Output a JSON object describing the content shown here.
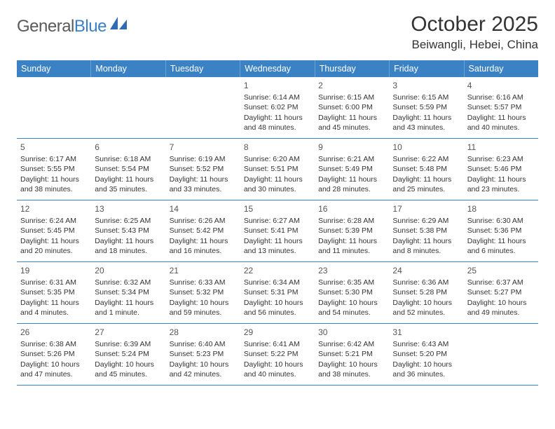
{
  "brand": {
    "part1": "General",
    "part2": "Blue"
  },
  "title": "October 2025",
  "location": "Beiwangli, Hebei, China",
  "colors": {
    "header_bg": "#3b82c4",
    "header_text": "#ffffff",
    "rule": "#3b82c4",
    "body_text": "#333333",
    "brand_gray": "#5a5a5a",
    "brand_blue": "#3b7fc4",
    "page_bg": "#ffffff"
  },
  "typography": {
    "title_fontsize": 30,
    "location_fontsize": 17,
    "weekday_fontsize": 12.5,
    "daynum_fontsize": 12,
    "body_fontsize": 10.5,
    "font_family": "Arial"
  },
  "weekdays": [
    "Sunday",
    "Monday",
    "Tuesday",
    "Wednesday",
    "Thursday",
    "Friday",
    "Saturday"
  ],
  "weeks": [
    [
      {
        "day": "",
        "sunrise": "",
        "sunset": "",
        "daylight1": "",
        "daylight2": ""
      },
      {
        "day": "",
        "sunrise": "",
        "sunset": "",
        "daylight1": "",
        "daylight2": ""
      },
      {
        "day": "",
        "sunrise": "",
        "sunset": "",
        "daylight1": "",
        "daylight2": ""
      },
      {
        "day": "1",
        "sunrise": "Sunrise: 6:14 AM",
        "sunset": "Sunset: 6:02 PM",
        "daylight1": "Daylight: 11 hours",
        "daylight2": "and 48 minutes."
      },
      {
        "day": "2",
        "sunrise": "Sunrise: 6:15 AM",
        "sunset": "Sunset: 6:00 PM",
        "daylight1": "Daylight: 11 hours",
        "daylight2": "and 45 minutes."
      },
      {
        "day": "3",
        "sunrise": "Sunrise: 6:15 AM",
        "sunset": "Sunset: 5:59 PM",
        "daylight1": "Daylight: 11 hours",
        "daylight2": "and 43 minutes."
      },
      {
        "day": "4",
        "sunrise": "Sunrise: 6:16 AM",
        "sunset": "Sunset: 5:57 PM",
        "daylight1": "Daylight: 11 hours",
        "daylight2": "and 40 minutes."
      }
    ],
    [
      {
        "day": "5",
        "sunrise": "Sunrise: 6:17 AM",
        "sunset": "Sunset: 5:55 PM",
        "daylight1": "Daylight: 11 hours",
        "daylight2": "and 38 minutes."
      },
      {
        "day": "6",
        "sunrise": "Sunrise: 6:18 AM",
        "sunset": "Sunset: 5:54 PM",
        "daylight1": "Daylight: 11 hours",
        "daylight2": "and 35 minutes."
      },
      {
        "day": "7",
        "sunrise": "Sunrise: 6:19 AM",
        "sunset": "Sunset: 5:52 PM",
        "daylight1": "Daylight: 11 hours",
        "daylight2": "and 33 minutes."
      },
      {
        "day": "8",
        "sunrise": "Sunrise: 6:20 AM",
        "sunset": "Sunset: 5:51 PM",
        "daylight1": "Daylight: 11 hours",
        "daylight2": "and 30 minutes."
      },
      {
        "day": "9",
        "sunrise": "Sunrise: 6:21 AM",
        "sunset": "Sunset: 5:49 PM",
        "daylight1": "Daylight: 11 hours",
        "daylight2": "and 28 minutes."
      },
      {
        "day": "10",
        "sunrise": "Sunrise: 6:22 AM",
        "sunset": "Sunset: 5:48 PM",
        "daylight1": "Daylight: 11 hours",
        "daylight2": "and 25 minutes."
      },
      {
        "day": "11",
        "sunrise": "Sunrise: 6:23 AM",
        "sunset": "Sunset: 5:46 PM",
        "daylight1": "Daylight: 11 hours",
        "daylight2": "and 23 minutes."
      }
    ],
    [
      {
        "day": "12",
        "sunrise": "Sunrise: 6:24 AM",
        "sunset": "Sunset: 5:45 PM",
        "daylight1": "Daylight: 11 hours",
        "daylight2": "and 20 minutes."
      },
      {
        "day": "13",
        "sunrise": "Sunrise: 6:25 AM",
        "sunset": "Sunset: 5:43 PM",
        "daylight1": "Daylight: 11 hours",
        "daylight2": "and 18 minutes."
      },
      {
        "day": "14",
        "sunrise": "Sunrise: 6:26 AM",
        "sunset": "Sunset: 5:42 PM",
        "daylight1": "Daylight: 11 hours",
        "daylight2": "and 16 minutes."
      },
      {
        "day": "15",
        "sunrise": "Sunrise: 6:27 AM",
        "sunset": "Sunset: 5:41 PM",
        "daylight1": "Daylight: 11 hours",
        "daylight2": "and 13 minutes."
      },
      {
        "day": "16",
        "sunrise": "Sunrise: 6:28 AM",
        "sunset": "Sunset: 5:39 PM",
        "daylight1": "Daylight: 11 hours",
        "daylight2": "and 11 minutes."
      },
      {
        "day": "17",
        "sunrise": "Sunrise: 6:29 AM",
        "sunset": "Sunset: 5:38 PM",
        "daylight1": "Daylight: 11 hours",
        "daylight2": "and 8 minutes."
      },
      {
        "day": "18",
        "sunrise": "Sunrise: 6:30 AM",
        "sunset": "Sunset: 5:36 PM",
        "daylight1": "Daylight: 11 hours",
        "daylight2": "and 6 minutes."
      }
    ],
    [
      {
        "day": "19",
        "sunrise": "Sunrise: 6:31 AM",
        "sunset": "Sunset: 5:35 PM",
        "daylight1": "Daylight: 11 hours",
        "daylight2": "and 4 minutes."
      },
      {
        "day": "20",
        "sunrise": "Sunrise: 6:32 AM",
        "sunset": "Sunset: 5:34 PM",
        "daylight1": "Daylight: 11 hours",
        "daylight2": "and 1 minute."
      },
      {
        "day": "21",
        "sunrise": "Sunrise: 6:33 AM",
        "sunset": "Sunset: 5:32 PM",
        "daylight1": "Daylight: 10 hours",
        "daylight2": "and 59 minutes."
      },
      {
        "day": "22",
        "sunrise": "Sunrise: 6:34 AM",
        "sunset": "Sunset: 5:31 PM",
        "daylight1": "Daylight: 10 hours",
        "daylight2": "and 56 minutes."
      },
      {
        "day": "23",
        "sunrise": "Sunrise: 6:35 AM",
        "sunset": "Sunset: 5:30 PM",
        "daylight1": "Daylight: 10 hours",
        "daylight2": "and 54 minutes."
      },
      {
        "day": "24",
        "sunrise": "Sunrise: 6:36 AM",
        "sunset": "Sunset: 5:28 PM",
        "daylight1": "Daylight: 10 hours",
        "daylight2": "and 52 minutes."
      },
      {
        "day": "25",
        "sunrise": "Sunrise: 6:37 AM",
        "sunset": "Sunset: 5:27 PM",
        "daylight1": "Daylight: 10 hours",
        "daylight2": "and 49 minutes."
      }
    ],
    [
      {
        "day": "26",
        "sunrise": "Sunrise: 6:38 AM",
        "sunset": "Sunset: 5:26 PM",
        "daylight1": "Daylight: 10 hours",
        "daylight2": "and 47 minutes."
      },
      {
        "day": "27",
        "sunrise": "Sunrise: 6:39 AM",
        "sunset": "Sunset: 5:24 PM",
        "daylight1": "Daylight: 10 hours",
        "daylight2": "and 45 minutes."
      },
      {
        "day": "28",
        "sunrise": "Sunrise: 6:40 AM",
        "sunset": "Sunset: 5:23 PM",
        "daylight1": "Daylight: 10 hours",
        "daylight2": "and 42 minutes."
      },
      {
        "day": "29",
        "sunrise": "Sunrise: 6:41 AM",
        "sunset": "Sunset: 5:22 PM",
        "daylight1": "Daylight: 10 hours",
        "daylight2": "and 40 minutes."
      },
      {
        "day": "30",
        "sunrise": "Sunrise: 6:42 AM",
        "sunset": "Sunset: 5:21 PM",
        "daylight1": "Daylight: 10 hours",
        "daylight2": "and 38 minutes."
      },
      {
        "day": "31",
        "sunrise": "Sunrise: 6:43 AM",
        "sunset": "Sunset: 5:20 PM",
        "daylight1": "Daylight: 10 hours",
        "daylight2": "and 36 minutes."
      },
      {
        "day": "",
        "sunrise": "",
        "sunset": "",
        "daylight1": "",
        "daylight2": ""
      }
    ]
  ]
}
